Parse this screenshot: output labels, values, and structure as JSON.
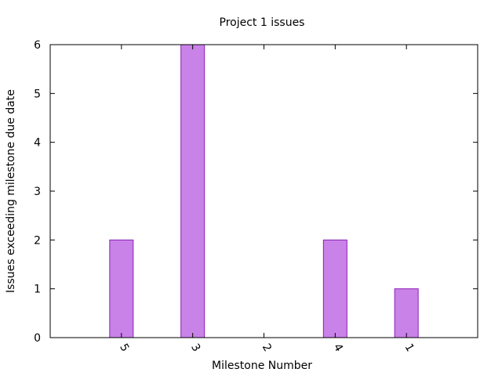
{
  "chart_data": {
    "type": "bar",
    "title": "Project 1 issues",
    "xlabel": "Milestone Number",
    "ylabel": "Issues exceeding milestone due date",
    "categories": [
      "5",
      "3",
      "2",
      "4",
      "1"
    ],
    "values": [
      2,
      6,
      0,
      2,
      1
    ],
    "ylim": [
      0,
      6
    ],
    "yticks": [
      0,
      1,
      2,
      3,
      4,
      5,
      6
    ],
    "grid": false,
    "bar_color": "#c982e8",
    "bar_edge_color": "#8b20b5"
  }
}
